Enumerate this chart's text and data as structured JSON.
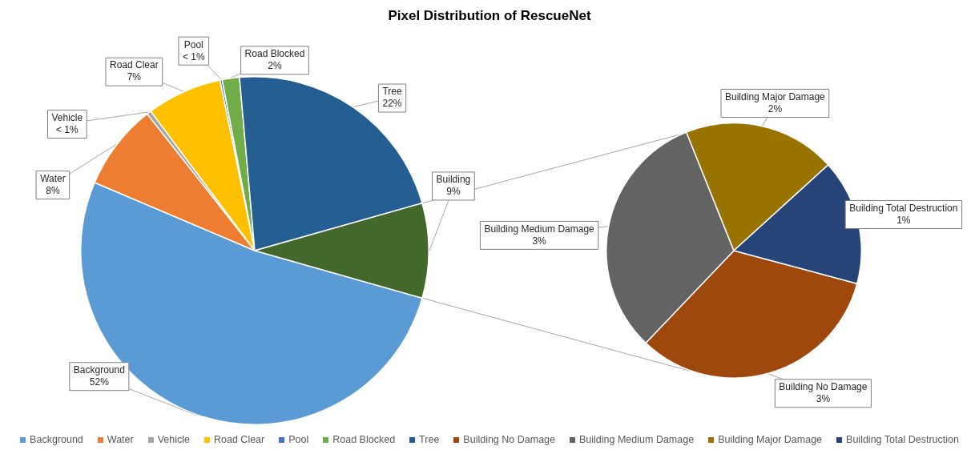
{
  "chart_data": [
    {
      "type": "pie",
      "title": "Pixel Distribution of RescueNet",
      "categories": [
        "Background",
        "Water",
        "Vehicle",
        "Road Clear",
        "Pool",
        "Road Blocked",
        "Tree",
        "Building"
      ],
      "values": [
        52,
        8,
        0.4,
        7,
        0.2,
        1.6,
        22,
        8.8
      ],
      "colors": [
        "#5b9bd5",
        "#ed7d31",
        "#a5a5a5",
        "#ffc000",
        "#4472c4",
        "#70ad47",
        "#255e91",
        "#43682b"
      ],
      "value_labels": [
        "52%",
        "8%",
        "< 1%",
        "7%",
        "< 1%",
        "2%",
        "22%",
        "9%"
      ],
      "legend": "bottom"
    },
    {
      "type": "pie",
      "categories": [
        "Building No Damage",
        "Building Medium Damage",
        "Building Major Damage",
        "Building Total Destruction"
      ],
      "values": [
        2.9,
        2.8,
        1.7,
        1.4
      ],
      "colors": [
        "#9e480e",
        "#636363",
        "#997300",
        "#264478"
      ],
      "value_labels": [
        "3%",
        "3%",
        "2%",
        "1%"
      ],
      "legend": "bottom"
    }
  ]
}
